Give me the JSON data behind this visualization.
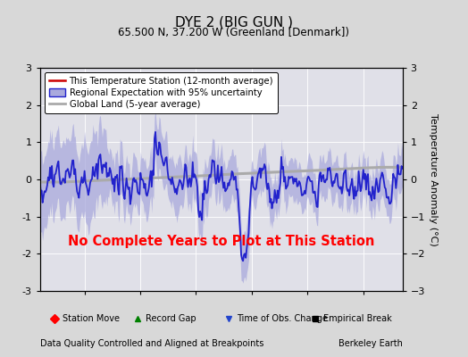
{
  "title": "DYE 2 (BIG GUN )",
  "subtitle": "65.500 N, 37.200 W (Greenland [Denmark])",
  "xlabel_left": "Data Quality Controlled and Aligned at Breakpoints",
  "xlabel_right": "Berkeley Earth",
  "ylabel": "Temperature Anomaly (°C)",
  "no_data_text": "No Complete Years to Plot at This Station",
  "ylim": [
    -3,
    3
  ],
  "xlim": [
    1966.0,
    1998.5
  ],
  "xticks": [
    1970,
    1975,
    1980,
    1985,
    1990,
    1995
  ],
  "yticks": [
    -3,
    -2,
    -1,
    0,
    1,
    2,
    3
  ],
  "bg_color": "#d8d8d8",
  "plot_bg_color": "#e0e0e8",
  "regional_line_color": "#2222cc",
  "regional_fill_color": "#aaaadd",
  "global_land_color": "#aaaaaa",
  "no_data_color": "red",
  "grid_color": "#ffffff",
  "legend_line_red": "#cc0000",
  "legend_line_blue": "#2222cc",
  "legend_fill_blue": "#aaaadd",
  "legend_gray": "#aaaaaa"
}
